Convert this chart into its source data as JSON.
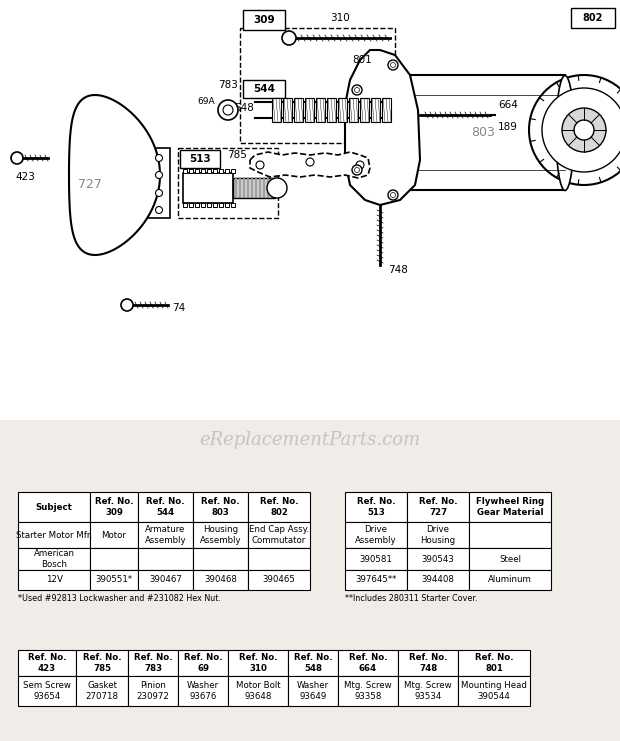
{
  "bg_color": "#f0ede8",
  "watermark": "eReplacementParts.com",
  "t1_left_headers": [
    "Subject",
    "Ref. No.\n309",
    "Ref. No.\n544",
    "Ref. No.\n803",
    "Ref. No.\n802"
  ],
  "t1_left_rows": [
    [
      "Starter Motor Mfr.",
      "Motor",
      "Armature\nAssembly",
      "Housing\nAssembly",
      "End Cap Assy.\nCommutator"
    ],
    [
      "American\nBosch",
      "",
      "",
      "",
      ""
    ],
    [
      "12V",
      "390551*",
      "390467",
      "390468",
      "390465"
    ]
  ],
  "t1_left_footnote": "*Used #92813 Lockwasher and #231082 Hex Nut.",
  "t1_right_headers": [
    "Ref. No.\n513",
    "Ref. No.\n727",
    "Flywheel Ring\nGear Material"
  ],
  "t1_right_rows": [
    [
      "Drive\nAssembly",
      "Drive\nHousing",
      ""
    ],
    [
      "390581",
      "390543",
      "Steel"
    ],
    [
      "397645**",
      "394408",
      "Aluminum"
    ]
  ],
  "t1_right_footnote": "**Includes 280311 Starter Cover.",
  "t2_headers": [
    "Ref. No.\n423",
    "Ref. No.\n785",
    "Ref. No.\n783",
    "Ref. No.\n69",
    "Ref. No.\n310",
    "Ref. No.\n548",
    "Ref. No.\n664",
    "Ref. No.\n748",
    "Ref. No.\n801"
  ],
  "t2_row": [
    "Sem Screw\n93654",
    "Gasket\n270718",
    "Pinion\n230972",
    "Washer\n93676",
    "Motor Bolt\n93648",
    "Washer\n93649",
    "Mtg. Screw\n93358",
    "Mtg. Screw\n93534",
    "Mounting Head\n390544"
  ]
}
